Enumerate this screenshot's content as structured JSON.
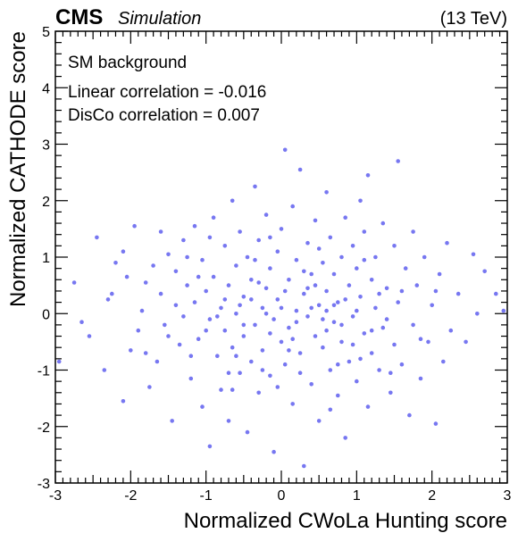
{
  "chart_data": {
    "type": "scatter",
    "xlabel": "Normalized CWoLa Hunting score",
    "ylabel": "Normalized CATHODE score",
    "xlim": [
      -3,
      3
    ],
    "ylim": [
      -3,
      5
    ],
    "xticks": [
      "-3",
      "-2",
      "-1",
      "0",
      "1",
      "2",
      "3"
    ],
    "yticks": [
      "-3",
      "-2",
      "-1",
      "0",
      "1",
      "2",
      "3",
      "4",
      "5"
    ],
    "experiment_label": "CMS",
    "status_label": "Simulation",
    "energy_label": "(13 TeV)",
    "annotations": [
      "SM background",
      "Linear correlation = -0.016",
      "DisCo correlation = 0.007"
    ],
    "marker_color": "#5555ee",
    "grid": false,
    "points": [
      [
        -2.95,
        -0.85
      ],
      [
        -2.75,
        0.55
      ],
      [
        -2.65,
        -0.15
      ],
      [
        -2.55,
        -0.4
      ],
      [
        -2.45,
        1.35
      ],
      [
        -2.35,
        -1.0
      ],
      [
        -2.25,
        0.35
      ],
      [
        -2.2,
        0.9
      ],
      [
        -2.1,
        1.1
      ],
      [
        -2.1,
        -1.55
      ],
      [
        -2.05,
        0.65
      ],
      [
        -2.0,
        -0.65
      ],
      [
        -1.95,
        1.55
      ],
      [
        -1.9,
        -0.3
      ],
      [
        -1.85,
        0.05
      ],
      [
        -1.8,
        0.55
      ],
      [
        -1.75,
        -1.3
      ],
      [
        -1.7,
        0.85
      ],
      [
        -1.65,
        -0.85
      ],
      [
        -1.6,
        0.35
      ],
      [
        -1.55,
        -0.2
      ],
      [
        -1.5,
        1.05
      ],
      [
        -1.45,
        -1.9
      ],
      [
        -1.4,
        0.75
      ],
      [
        -1.35,
        -0.55
      ],
      [
        -1.3,
        1.3
      ],
      [
        -1.3,
        -0.05
      ],
      [
        -1.25,
        0.5
      ],
      [
        -1.2,
        -1.15
      ],
      [
        -1.15,
        1.55
      ],
      [
        -1.15,
        0.2
      ],
      [
        -1.1,
        -0.45
      ],
      [
        -1.05,
        0.95
      ],
      [
        -1.05,
        -1.65
      ],
      [
        -1.0,
        0.4
      ],
      [
        -0.95,
        -0.1
      ],
      [
        -0.95,
        -2.35
      ],
      [
        -0.9,
        1.7
      ],
      [
        -0.9,
        0.65
      ],
      [
        -0.85,
        -0.75
      ],
      [
        -0.8,
        0.1
      ],
      [
        -0.8,
        -1.35
      ],
      [
        -0.75,
        1.2
      ],
      [
        -0.75,
        -0.3
      ],
      [
        -0.7,
        0.5
      ],
      [
        -0.7,
        -1.9
      ],
      [
        -0.65,
        2.0
      ],
      [
        -0.65,
        -0.6
      ],
      [
        -0.6,
        0.85
      ],
      [
        -0.6,
        0.0
      ],
      [
        -0.55,
        -1.05
      ],
      [
        -0.55,
        1.45
      ],
      [
        -0.5,
        0.3
      ],
      [
        -0.5,
        -0.4
      ],
      [
        -0.45,
        -2.1
      ],
      [
        -0.45,
        1.0
      ],
      [
        -0.4,
        -0.85
      ],
      [
        -0.4,
        0.6
      ],
      [
        -0.35,
        2.25
      ],
      [
        -0.35,
        -0.2
      ],
      [
        -0.3,
        1.3
      ],
      [
        -0.3,
        -1.4
      ],
      [
        -0.25,
        0.1
      ],
      [
        -0.25,
        -0.65
      ],
      [
        -0.2,
        1.75
      ],
      [
        -0.2,
        0.45
      ],
      [
        -0.15,
        -1.1
      ],
      [
        -0.15,
        0.8
      ],
      [
        -0.1,
        -0.1
      ],
      [
        -0.1,
        -2.45
      ],
      [
        -0.05,
        1.1
      ],
      [
        -0.05,
        0.25
      ],
      [
        0.0,
        -0.5
      ],
      [
        0.0,
        1.5
      ],
      [
        0.05,
        2.9
      ],
      [
        0.05,
        -0.9
      ],
      [
        0.1,
        0.6
      ],
      [
        0.1,
        -0.25
      ],
      [
        0.15,
        1.9
      ],
      [
        0.15,
        -1.6
      ],
      [
        0.2,
        0.05
      ],
      [
        0.2,
        0.95
      ],
      [
        0.25,
        -0.7
      ],
      [
        0.25,
        2.55
      ],
      [
        0.3,
        0.35
      ],
      [
        0.3,
        -2.7
      ],
      [
        0.35,
        -0.05
      ],
      [
        0.35,
        1.25
      ],
      [
        0.4,
        -1.25
      ],
      [
        0.4,
        0.7
      ],
      [
        0.45,
        -0.4
      ],
      [
        0.45,
        1.65
      ],
      [
        0.5,
        0.15
      ],
      [
        0.5,
        -1.9
      ],
      [
        0.55,
        0.9
      ],
      [
        0.55,
        -0.6
      ],
      [
        0.6,
        2.15
      ],
      [
        0.6,
        0.4
      ],
      [
        0.65,
        -1.0
      ],
      [
        0.65,
        1.35
      ],
      [
        0.7,
        -0.15
      ],
      [
        0.7,
        0.7
      ],
      [
        0.75,
        -1.45
      ],
      [
        0.75,
        0.2
      ],
      [
        0.8,
        1.0
      ],
      [
        0.8,
        -0.5
      ],
      [
        0.85,
        1.7
      ],
      [
        0.85,
        -2.2
      ],
      [
        0.9,
        0.5
      ],
      [
        0.9,
        -0.85
      ],
      [
        0.95,
        1.2
      ],
      [
        0.95,
        -0.05
      ],
      [
        1.0,
        0.8
      ],
      [
        1.0,
        -1.2
      ],
      [
        1.05,
        2.0
      ],
      [
        1.05,
        0.3
      ],
      [
        1.1,
        -0.35
      ],
      [
        1.1,
        1.45
      ],
      [
        1.15,
        2.45
      ],
      [
        1.15,
        -1.65
      ],
      [
        1.2,
        0.6
      ],
      [
        1.2,
        -0.7
      ],
      [
        1.25,
        1.0
      ],
      [
        1.25,
        0.1
      ],
      [
        1.3,
        -1.0
      ],
      [
        1.35,
        1.6
      ],
      [
        1.35,
        -0.25
      ],
      [
        1.4,
        0.45
      ],
      [
        1.45,
        -1.4
      ],
      [
        1.5,
        1.2
      ],
      [
        1.5,
        -0.55
      ],
      [
        1.55,
        2.7
      ],
      [
        1.55,
        0.2
      ],
      [
        1.6,
        -0.9
      ],
      [
        1.65,
        0.8
      ],
      [
        1.7,
        -1.8
      ],
      [
        1.75,
        1.45
      ],
      [
        1.75,
        -0.2
      ],
      [
        1.8,
        0.5
      ],
      [
        1.85,
        -1.15
      ],
      [
        1.9,
        1.0
      ],
      [
        1.95,
        -0.5
      ],
      [
        2.0,
        0.15
      ],
      [
        2.05,
        -1.95
      ],
      [
        2.1,
        0.7
      ],
      [
        2.15,
        -0.85
      ],
      [
        2.2,
        1.25
      ],
      [
        2.25,
        -0.3
      ],
      [
        2.35,
        0.35
      ],
      [
        2.45,
        -0.5
      ],
      [
        2.55,
        1.05
      ],
      [
        2.6,
        0.0
      ],
      [
        2.7,
        0.75
      ],
      [
        2.85,
        0.35
      ],
      [
        2.95,
        0.05
      ],
      [
        -1.6,
        1.45
      ],
      [
        -1.2,
        -0.75
      ],
      [
        -0.95,
        1.35
      ],
      [
        -0.65,
        -1.35
      ],
      [
        -0.35,
        0.95
      ],
      [
        -0.15,
        -0.35
      ],
      [
        0.15,
        -0.45
      ],
      [
        0.4,
        0.1
      ],
      [
        0.6,
        -0.3
      ],
      [
        0.85,
        0.25
      ],
      [
        1.1,
        0.95
      ],
      [
        1.3,
        0.35
      ],
      [
        -0.55,
        0.15
      ],
      [
        -0.25,
        -1.0
      ],
      [
        0.05,
        0.4
      ],
      [
        0.3,
        0.75
      ],
      [
        0.55,
        -0.1
      ],
      [
        0.75,
        -0.9
      ],
      [
        1.0,
        0.05
      ],
      [
        1.4,
        -0.1
      ],
      [
        -1.0,
        -0.3
      ],
      [
        -0.75,
        0.25
      ],
      [
        -0.5,
        -0.2
      ],
      [
        -0.3,
        0.55
      ],
      [
        0.0,
        0.1
      ],
      [
        0.2,
        -0.15
      ],
      [
        0.45,
        0.5
      ],
      [
        0.7,
        0.15
      ],
      [
        0.95,
        -0.55
      ],
      [
        1.2,
        -0.3
      ],
      [
        -1.4,
        0.15
      ],
      [
        -1.1,
        0.65
      ],
      [
        -0.85,
        -0.05
      ],
      [
        -0.6,
        -0.75
      ],
      [
        -0.4,
        0.25
      ],
      [
        -0.2,
        0.0
      ],
      [
        0.1,
        -0.65
      ],
      [
        0.35,
        0.45
      ],
      [
        0.6,
        0.05
      ],
      [
        0.8,
        -0.2
      ],
      [
        1.05,
        -0.8
      ],
      [
        1.6,
        0.4
      ],
      [
        1.85,
        -0.45
      ],
      [
        2.05,
        0.4
      ],
      [
        -1.8,
        -0.7
      ],
      [
        -2.3,
        0.25
      ],
      [
        -1.5,
        -0.4
      ],
      [
        -0.05,
        -1.3
      ],
      [
        0.25,
        -1.05
      ],
      [
        0.5,
        1.15
      ],
      [
        -0.15,
        1.35
      ],
      [
        0.65,
        -1.7
      ],
      [
        1.45,
        -1.05
      ],
      [
        -1.25,
        1.0
      ],
      [
        -0.7,
        -1.05
      ]
    ]
  }
}
